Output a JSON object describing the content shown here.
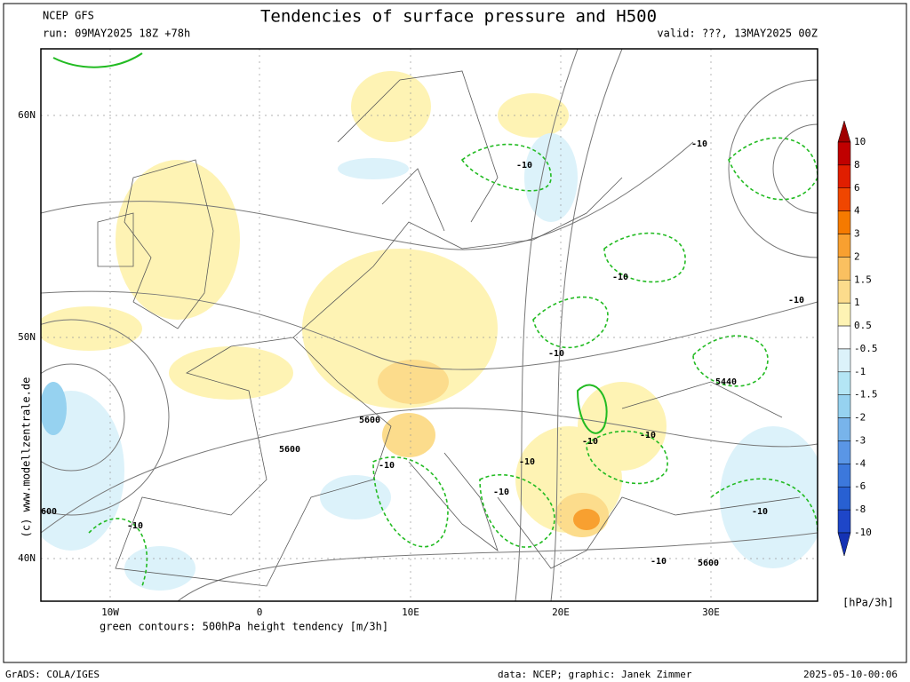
{
  "header": {
    "model": "NCEP GFS",
    "title": "Tendencies of surface pressure and H500",
    "run": "run: 09MAY2025 18Z +78h",
    "valid": "valid: ???, 13MAY2025 00Z"
  },
  "map": {
    "lat_labels": [
      "60N",
      "50N",
      "40N"
    ],
    "lon_labels": [
      "10W",
      "0",
      "10E",
      "20E",
      "30E"
    ],
    "contour_labels": [
      "-10",
      "-10",
      "-10",
      "-10",
      "-10",
      "-10",
      "-10",
      "-10",
      "-10",
      "-10",
      "-10",
      "-10",
      "-10",
      "5440",
      "5600",
      "5600",
      "5600",
      "600"
    ],
    "caption": "green contours: 500hPa height tendency [m/3h]",
    "watermark": "(c) www.modellzentrale.de"
  },
  "colorbar": {
    "labels": [
      "10",
      "8",
      "6",
      "4",
      "3",
      "2",
      "1.5",
      "1",
      "0.5",
      "-0.5",
      "-1",
      "-1.5",
      "-2",
      "-3",
      "-4",
      "-6",
      "-8",
      "-10"
    ],
    "colors": [
      "#a00000",
      "#c00000",
      "#e01e00",
      "#f04600",
      "#f57a00",
      "#f8a030",
      "#fac060",
      "#fcdc8c",
      "#fef3b4",
      "#ffffff",
      "#dcf2fa",
      "#b4e6f5",
      "#96d2f0",
      "#78b4eb",
      "#5a96e6",
      "#3c78dc",
      "#2860d2",
      "#1e46c8",
      "#1432b4"
    ],
    "unit": "[hPa/3h]"
  },
  "footer": {
    "software": "GrADS: COLA/IGES",
    "credits": "data: NCEP; graphic: Janek Zimmer",
    "timestamp": "2025-05-10-00:06"
  }
}
